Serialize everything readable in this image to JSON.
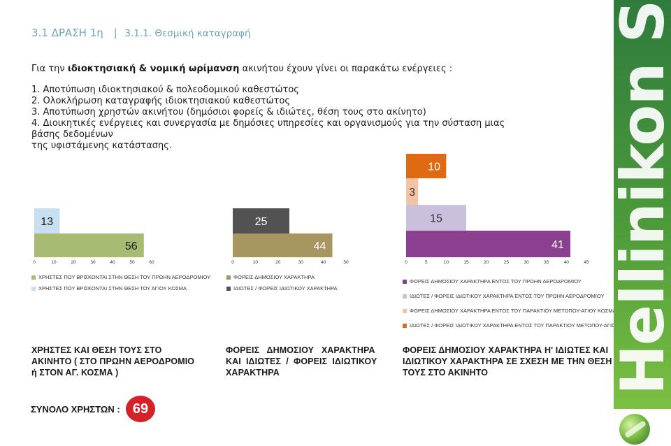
{
  "header": {
    "section": "3.1 ΔΡΑΣΗ 1η",
    "separator": "|",
    "subsection": "3.1.1. Θεσμική καταγραφή"
  },
  "intro": {
    "prefix": "Για την ",
    "bold": "ιδιοκτησιακή & νομική ωρίμανση",
    "suffix": " ακινήτου έχουν γίνει οι παρακάτω ενέργειες :"
  },
  "steps": [
    "1. Αποτύπωση ιδιοκτησιακού & πολεοδομικού καθεστώτος",
    "2. Ολοκλήρωση καταγραφής ιδιοκτησιακού καθεστώτος",
    "3. Αποτύπωση χρηστών ακινήτου (δημόσιοι φορείς & ιδιώτες, θέση τους στο ακίνητο)",
    "4. Διοικητικές ενέργειες και συνεργασία με δημόσιες υπηρεσίες και οργανισμούς για την σύσταση μιας βάσης δεδομένων",
    "της υφιστάμενης κατάστασης."
  ],
  "brand": {
    "text": "Hellinikon SA",
    "color": "#4c9a3a"
  },
  "total": {
    "label": "ΣΥΝΟΛΟ ΧΡΗΣΤΩΝ :",
    "value": "69",
    "color": "#d4212a"
  },
  "chart_data": [
    {
      "type": "bar",
      "orientation": "horizontal",
      "title_lines": [
        "ΧΡΗΣΤΕΣ ΚΑΙ ΘΕΣΗ ΤΟΥΣ ΣΤΟ",
        "ΑΚΙΝΗΤΟ ( ΣΤΟ ΠΡΩΗΝ ΑΕΡΟΔΡΟΜΙΟ",
        "ή ΣΤΟΝ ΑΓ. ΚΟΣΜΑ )"
      ],
      "xlim": [
        0,
        60
      ],
      "ticks": [
        "0",
        "10",
        "20",
        "30",
        "40",
        "50",
        "60"
      ],
      "series": [
        {
          "name": "ΧΡΗΣΤΕΣ ΠΟΥ ΒΡΙΣΚΟΝΤΑΙ ΣΤΗΝ ΘΕΣΗ ΤΟΥ ΑΓΙΟΥ ΚΟΣΜΑ",
          "value": 13,
          "label": "13",
          "color": "#c7dff0"
        },
        {
          "name": "ΧΡΗΣΤΕΣ ΠΟΥ ΒΡΙΣΚΟΝΤΑΙ ΣΤΗΝ ΘΕΣΗ ΤΟΥ ΠΡΩΗΝ ΑΕΡΟΔΡΟΜΙΟΥ",
          "value": 56,
          "label": "56",
          "color": "#a7bc72"
        }
      ],
      "legend_order": [
        1,
        0
      ]
    },
    {
      "type": "bar",
      "orientation": "horizontal",
      "title_lines": [
        "ΦΟΡΕΙΣ   ΔΗΜΟΣΙΟΥ   ΧΑΡΑΚΤΗΡΑ",
        "ΚΑΙ  ΙΔΙΩΤΕΣ  /  ΦΟΡΕΙΣ  ΙΔΙΩΤΙΚΟΥ",
        "ΧΑΡΑΚΤΗΡΑ"
      ],
      "xlim": [
        0,
        50
      ],
      "ticks": [
        "0",
        "10",
        "20",
        "30",
        "40",
        "50"
      ],
      "series": [
        {
          "name": "ΙΔΙΩΤΕΣ / ΦΟΡΕΙΣ ΙΔΙΩΤΙΚΟΥ ΧΑΡΑΚΤΗΡΑ",
          "value": 25,
          "label": "25",
          "color": "#525252"
        },
        {
          "name": "ΦΟΡΕΙΣ ΔΗΜΟΣΙΟΥ ΧΑΡΑΚΤΗΡΑ",
          "value": 44,
          "label": "44",
          "color": "#a89660"
        }
      ],
      "legend_order": [
        1,
        0
      ]
    },
    {
      "type": "bar",
      "orientation": "horizontal",
      "title_lines": [
        "ΦΟΡΕΙΣ ΔΗΜΟΣΙΟΥ ΧΑΡΑΚΤΗΡΑ Η' ΙΔΙΩΤΕΣ ΚΑΙ",
        "ΙΔΙΩΤΙΚΟΥ ΧΑΡΑΚΤΗΡΑ ΣΕ ΣΧΕΣΗ ΜΕ ΤΗΝ ΘΕΣΗ",
        "ΤΟΥΣ ΣΤΟ ΑΚΙΝΗΤΟ"
      ],
      "xlim": [
        0,
        45
      ],
      "ticks": [
        "0",
        "5",
        "10",
        "15",
        "20",
        "25",
        "30",
        "35",
        "40",
        "45"
      ],
      "series": [
        {
          "name": "ΙΔΙΩΤΕΣ / ΦΟΡΕΙΣ ΙΔΙΩΤΙΚΟΥ ΧΑΡΑΚΤΗΡΑ ΕΝΤΟΣ ΤΟΥ ΠΑΡΑΚΤΙΟΥ ΜΕΤΟΠΟΥ-ΑΓΙΟΥ ΚΟΣΜΑ",
          "value": 10,
          "label": "10",
          "color": "#e06a12"
        },
        {
          "name": "ΦΟΡΕΙΣ ΔΗΜΟΣΙΟΥ ΧΑΡΑΚΤΗΡΑ ΕΝΤΟΣ ΤΟΥ ΠΑΡΑΚΤΙΟΥ ΜΕΤΟΠΟΥ-ΑΓΙΟΥ ΚΟΣΜΑ",
          "value": 3,
          "label": "3",
          "color": "#f4c2a4"
        },
        {
          "name": "ΙΔΙΩΤΕΣ / ΦΟΡΕΙΣ ΙΔΙΩΤΙΚΟΥ ΧΑΡΑΚΤΗΡΑ  ΕΝΤΟΣ ΤΟΥ ΠΡΩΗΝ ΑΕΡΟΔΡΟΜΙΟΥ",
          "value": 15,
          "label": "15",
          "color": "#cbbfde"
        },
        {
          "name": "ΦΟΡΕΙΣ ΔΗΜΟΣΙΟΥ ΧΑΡΑΚΤΗΡΑ ΕΝΤΟΣ ΤΟΥ ΠΡΩΗΝ ΑΕΡΟΔΡΟΜΙΟΥ",
          "value": 41,
          "label": "41",
          "color": "#8b3f8f"
        }
      ],
      "legend_order": [
        3,
        2,
        1,
        0
      ]
    }
  ]
}
